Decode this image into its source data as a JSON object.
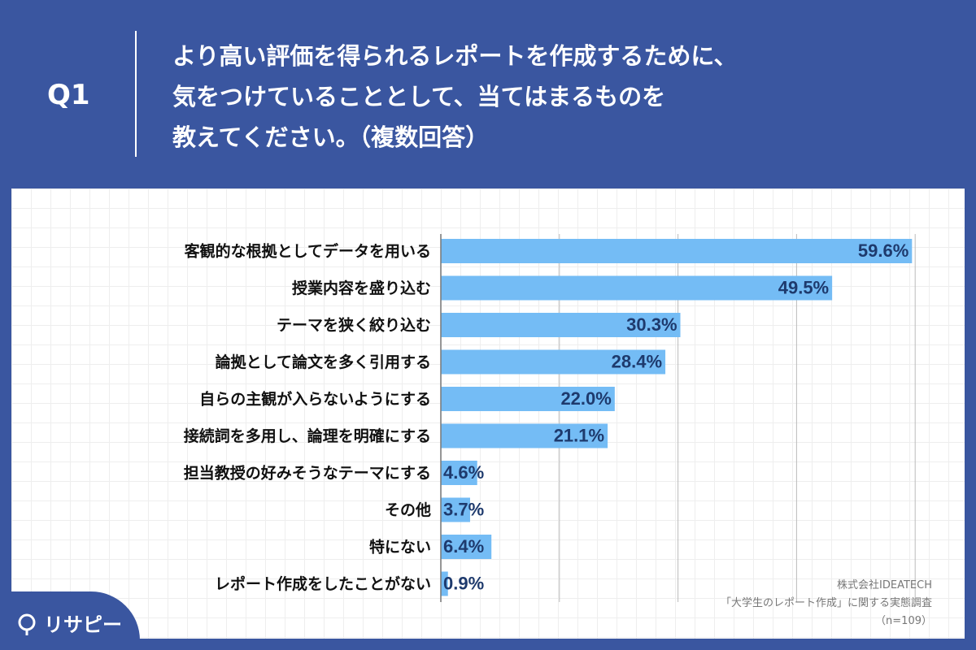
{
  "header": {
    "q_label": "Q1",
    "question_lines": [
      "より高い評価を得られるレポートを作成するために、",
      "気をつけていることとして、当てはまるものを",
      "教えてください。（複数回答）"
    ]
  },
  "source": {
    "company": "株式会社IDEATECH",
    "survey": "「大学生のレポート作成」に関する実態調査",
    "n": "（n=109）"
  },
  "logo": {
    "text": "リサピー",
    "icon": "lightbulb-icon"
  },
  "colors": {
    "background": "#3a56a0",
    "bar": "#74bcf5",
    "bar_label": "#1e3a6d",
    "category_label": "#111111"
  },
  "chart_data": {
    "type": "bar",
    "orientation": "horizontal",
    "categories": [
      "客観的な根拠としてデータを用いる",
      "授業内容を盛り込む",
      "テーマを狭く絞り込む",
      "論拠として論文を多く引用する",
      "自らの主観が入らないようにする",
      "接続詞を多用し、論理を明確にする",
      "担当教授の好みそうなテーマにする",
      "その他",
      "特にない",
      "レポート作成をしたことがない"
    ],
    "values": [
      59.6,
      49.5,
      30.3,
      28.4,
      22.0,
      21.1,
      4.6,
      3.7,
      6.4,
      0.9
    ],
    "value_labels": [
      "59.6%",
      "49.5%",
      "30.3%",
      "28.4%",
      "22.0%",
      "21.1%",
      "4.6%",
      "3.7%",
      "6.4%",
      "0.9%"
    ],
    "xlim": [
      0,
      60
    ],
    "gridlines": [
      0,
      15,
      30,
      45,
      60
    ],
    "grid": true,
    "legend": "none"
  }
}
